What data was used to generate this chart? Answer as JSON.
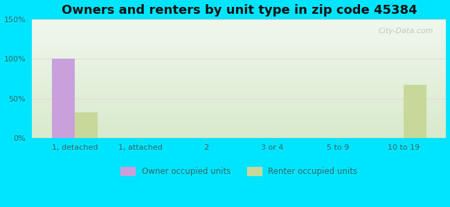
{
  "title": "Owners and renters by unit type in zip code 45384",
  "categories": [
    "1, detached",
    "1, attached",
    "2",
    "3 or 4",
    "5 to 9",
    "10 to 19"
  ],
  "owner_values": [
    100,
    0,
    0,
    0,
    0,
    0
  ],
  "renter_values": [
    33,
    0,
    0,
    0,
    0,
    67
  ],
  "owner_color": "#c9a0dc",
  "renter_color": "#c8d89a",
  "owner_label": "Owner occupied units",
  "renter_label": "Renter occupied units",
  "ylim": [
    0,
    150
  ],
  "yticks": [
    0,
    50,
    100,
    150
  ],
  "ytick_labels": [
    "0%",
    "50%",
    "100%",
    "150%"
  ],
  "background_color": "#00e5ff",
  "plot_bg_top": "#f0f7ee",
  "plot_bg_bottom": "#d8eacc",
  "bar_width": 0.35,
  "title_fontsize": 13,
  "tick_label_color": "#336666",
  "watermark": "City-Data.com",
  "grid_color": "#e8d8d8",
  "xlim_left": -0.65,
  "xlim_right": 5.65
}
